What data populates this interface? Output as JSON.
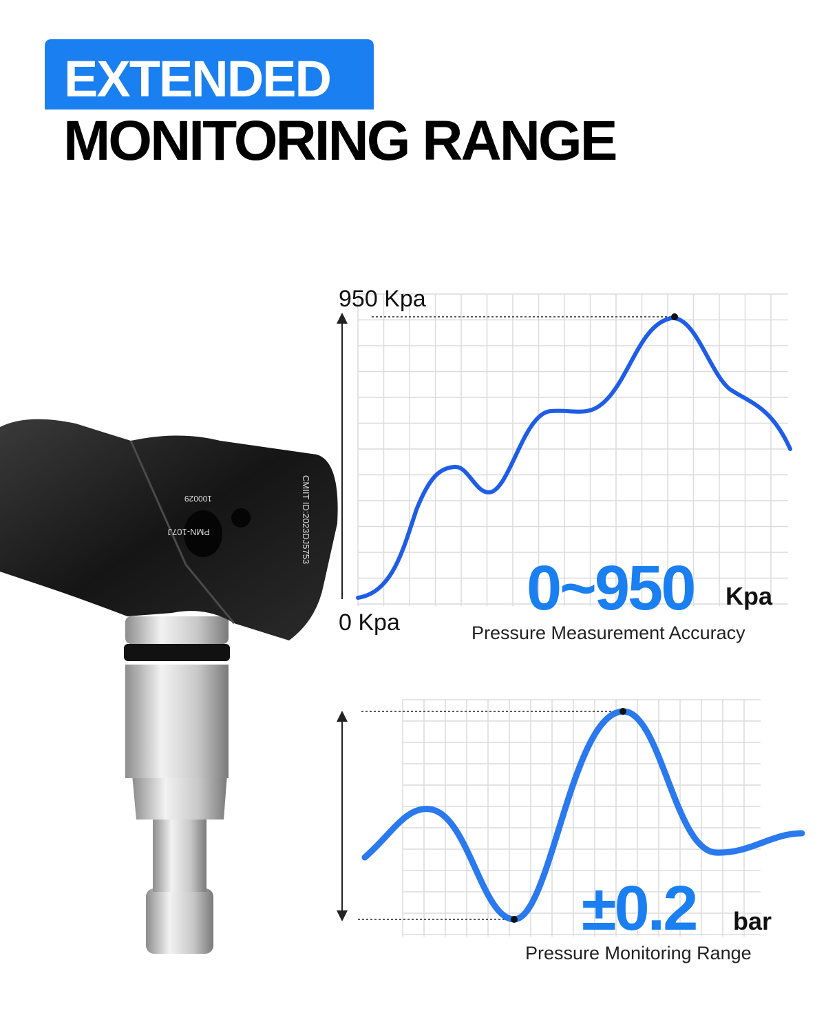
{
  "header": {
    "tag": "EXTENDED",
    "title": "MONITORING RANGE"
  },
  "sensor": {
    "labels": [
      "CMIIT ID:2023DJ5753",
      "100029",
      "PMN-107J"
    ]
  },
  "chart_top": {
    "top_label": "950 Kpa",
    "bottom_label": "0 Kpa",
    "headline": "0~950",
    "unit": "Kpa",
    "caption": "Pressure Measurement Accuracy"
  },
  "chart_bottom": {
    "headline": "±0.2",
    "unit": "bar",
    "caption": "Pressure Monitoring Range"
  }
}
